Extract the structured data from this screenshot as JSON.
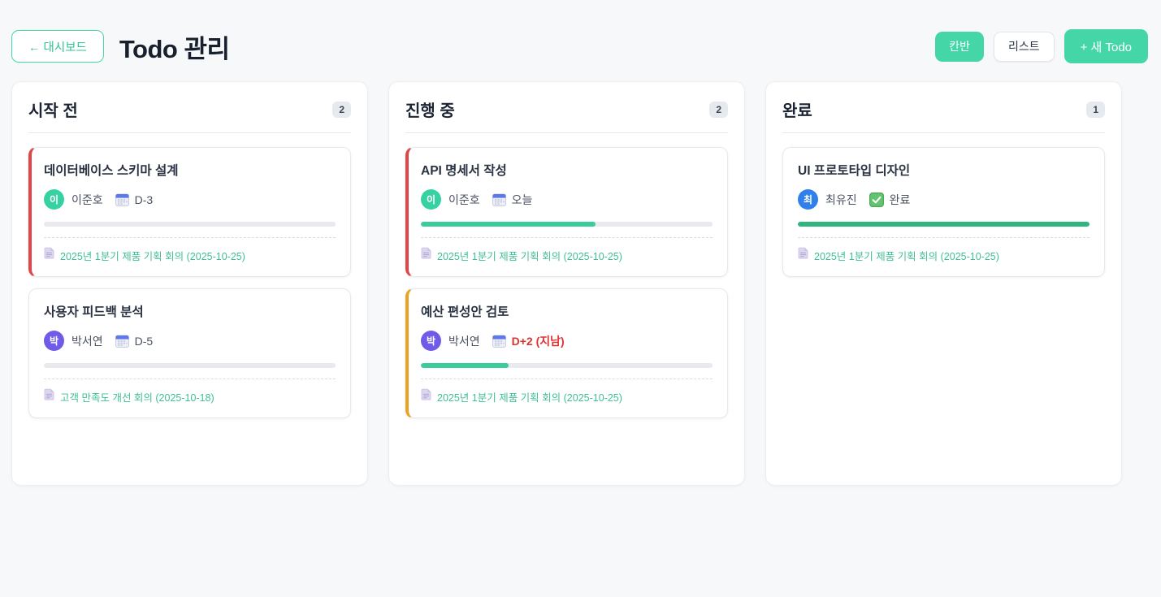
{
  "header": {
    "back_label": "← 대시보드",
    "title": "Todo 관리",
    "view_kanban": "칸반",
    "view_list": "리스트",
    "new_todo": "+ 새 Todo"
  },
  "colors": {
    "accent_green": "#45d6a8",
    "progress_green": "#3bcd99",
    "progress_done_green": "#2fb57e",
    "accent_red": "#e04545",
    "accent_amber": "#eaa220",
    "overdue_red": "#e03131",
    "link_green": "#3fbf95"
  },
  "columns": [
    {
      "title": "시작 전",
      "count": "2",
      "cards": [
        {
          "title": "데이터베이스 스키마 설계",
          "accent_color": "#e04545",
          "avatar": {
            "text": "이",
            "color": "#38d2a2"
          },
          "assignee": "이준호",
          "due": "D-3",
          "overdue": false,
          "done": false,
          "progress": 0,
          "link": "2025년 1분기 제품 기획 회의 (2025-10-25)"
        },
        {
          "title": "사용자 피드백 분석",
          "accent_color": null,
          "avatar": {
            "text": "박",
            "color": "#6f5be8"
          },
          "assignee": "박서연",
          "due": "D-5",
          "overdue": false,
          "done": false,
          "progress": 0,
          "link": "고객 만족도 개선 회의 (2025-10-18)"
        }
      ]
    },
    {
      "title": "진행 중",
      "count": "2",
      "cards": [
        {
          "title": "API 명세서 작성",
          "accent_color": "#e04545",
          "avatar": {
            "text": "이",
            "color": "#38d2a2"
          },
          "assignee": "이준호",
          "due": "오늘",
          "overdue": false,
          "done": false,
          "progress": 60,
          "link": "2025년 1분기 제품 기획 회의 (2025-10-25)"
        },
        {
          "title": "예산 편성안 검토",
          "accent_color": "#eaa220",
          "avatar": {
            "text": "박",
            "color": "#6f5be8"
          },
          "assignee": "박서연",
          "due": "D+2 (지남)",
          "overdue": true,
          "done": false,
          "progress": 30,
          "link": "2025년 1분기 제품 기획 회의 (2025-10-25)"
        }
      ]
    },
    {
      "title": "완료",
      "count": "1",
      "cards": [
        {
          "title": "UI 프로토타입 디자인",
          "accent_color": null,
          "avatar": {
            "text": "최",
            "color": "#2f80ed"
          },
          "assignee": "최유진",
          "due": "완료",
          "overdue": false,
          "done": true,
          "progress": 100,
          "progress_color": "#2fb57e",
          "link": "2025년 1분기 제품 기획 회의 (2025-10-25)"
        }
      ]
    }
  ]
}
